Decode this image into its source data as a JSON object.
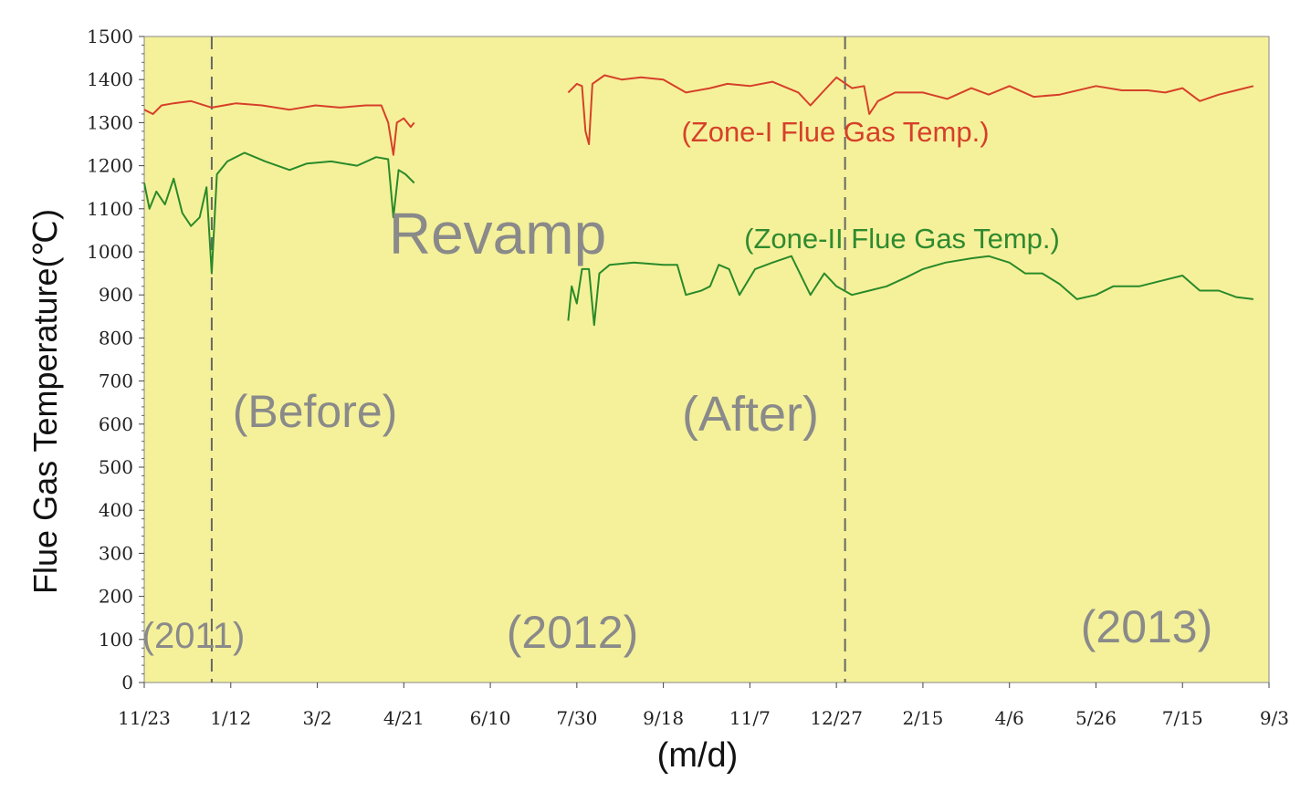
{
  "chart_data": {
    "type": "line",
    "title": "",
    "xlabel": "(m/d)",
    "ylabel": "Flue Gas Temperature(℃)",
    "ylim": [
      0,
      1500
    ],
    "yticks": [
      0,
      100,
      200,
      300,
      400,
      500,
      600,
      700,
      800,
      900,
      1000,
      1100,
      1200,
      1300,
      1400,
      1500
    ],
    "x_domain": [
      "2011-11-23",
      "2013-09-03"
    ],
    "xtick_labels": [
      "11/23",
      "1/12",
      "3/2",
      "4/21",
      "6/10",
      "7/30",
      "9/18",
      "11/7",
      "12/27",
      "2/15",
      "4/6",
      "5/26",
      "7/15",
      "9/3"
    ],
    "xtick_dates": [
      "2011-11-23",
      "2012-01-12",
      "2012-03-02",
      "2012-04-21",
      "2012-06-10",
      "2012-07-30",
      "2012-09-18",
      "2012-11-07",
      "2012-12-27",
      "2013-02-15",
      "2013-04-06",
      "2013-05-26",
      "2013-07-15",
      "2013-09-03"
    ],
    "grid": false,
    "background": "#f5f19a",
    "vlines": [
      "2012-01-01",
      "2013-01-01"
    ],
    "series": [
      {
        "name": "(Zone-I Flue Gas Temp.)",
        "color": "#d6402a",
        "segments": [
          [
            [
              "2011-11-23",
              1330
            ],
            [
              "2011-11-28",
              1320
            ],
            [
              "2011-12-03",
              1340
            ],
            [
              "2011-12-10",
              1345
            ],
            [
              "2011-12-20",
              1350
            ],
            [
              "2012-01-01",
              1335
            ],
            [
              "2012-01-15",
              1345
            ],
            [
              "2012-01-30",
              1340
            ],
            [
              "2012-02-15",
              1330
            ],
            [
              "2012-03-01",
              1340
            ],
            [
              "2012-03-15",
              1335
            ],
            [
              "2012-03-30",
              1340
            ],
            [
              "2012-04-08",
              1340
            ],
            [
              "2012-04-12",
              1300
            ],
            [
              "2012-04-15",
              1225
            ],
            [
              "2012-04-17",
              1300
            ],
            [
              "2012-04-21",
              1310
            ],
            [
              "2012-04-25",
              1290
            ],
            [
              "2012-04-27",
              1300
            ]
          ],
          [
            [
              "2012-07-25",
              1370
            ],
            [
              "2012-07-30",
              1390
            ],
            [
              "2012-08-02",
              1385
            ],
            [
              "2012-08-04",
              1280
            ],
            [
              "2012-08-06",
              1250
            ],
            [
              "2012-08-08",
              1390
            ],
            [
              "2012-08-15",
              1410
            ],
            [
              "2012-08-25",
              1400
            ],
            [
              "2012-09-05",
              1405
            ],
            [
              "2012-09-18",
              1400
            ],
            [
              "2012-10-01",
              1370
            ],
            [
              "2012-10-15",
              1380
            ],
            [
              "2012-10-25",
              1390
            ],
            [
              "2012-11-07",
              1385
            ],
            [
              "2012-11-20",
              1395
            ],
            [
              "2012-12-05",
              1370
            ],
            [
              "2012-12-12",
              1340
            ],
            [
              "2012-12-20",
              1375
            ],
            [
              "2012-12-27",
              1405
            ],
            [
              "2013-01-05",
              1380
            ],
            [
              "2013-01-12",
              1385
            ],
            [
              "2013-01-15",
              1320
            ],
            [
              "2013-01-20",
              1350
            ],
            [
              "2013-01-30",
              1370
            ],
            [
              "2013-02-15",
              1370
            ],
            [
              "2013-03-01",
              1355
            ],
            [
              "2013-03-15",
              1380
            ],
            [
              "2013-03-25",
              1365
            ],
            [
              "2013-04-06",
              1385
            ],
            [
              "2013-04-20",
              1360
            ],
            [
              "2013-05-05",
              1365
            ],
            [
              "2013-05-26",
              1385
            ],
            [
              "2013-06-10",
              1375
            ],
            [
              "2013-06-25",
              1375
            ],
            [
              "2013-07-05",
              1370
            ],
            [
              "2013-07-15",
              1380
            ],
            [
              "2013-07-25",
              1350
            ],
            [
              "2013-08-05",
              1365
            ],
            [
              "2013-08-15",
              1375
            ],
            [
              "2013-08-25",
              1385
            ]
          ]
        ]
      },
      {
        "name": "(Zone-II Flue Gas Temp.)",
        "color": "#2a8a2a",
        "segments": [
          [
            [
              "2011-11-23",
              1160
            ],
            [
              "2011-11-26",
              1100
            ],
            [
              "2011-11-30",
              1140
            ],
            [
              "2011-12-05",
              1110
            ],
            [
              "2011-12-10",
              1170
            ],
            [
              "2011-12-15",
              1090
            ],
            [
              "2011-12-20",
              1060
            ],
            [
              "2011-12-25",
              1080
            ],
            [
              "2011-12-29",
              1150
            ],
            [
              "2012-01-01",
              950
            ],
            [
              "2012-01-04",
              1180
            ],
            [
              "2012-01-10",
              1210
            ],
            [
              "2012-01-20",
              1230
            ],
            [
              "2012-02-01",
              1210
            ],
            [
              "2012-02-15",
              1190
            ],
            [
              "2012-02-25",
              1205
            ],
            [
              "2012-03-10",
              1210
            ],
            [
              "2012-03-25",
              1200
            ],
            [
              "2012-04-05",
              1220
            ],
            [
              "2012-04-12",
              1215
            ],
            [
              "2012-04-15",
              1080
            ],
            [
              "2012-04-18",
              1190
            ],
            [
              "2012-04-22",
              1180
            ],
            [
              "2012-04-27",
              1160
            ]
          ],
          [
            [
              "2012-07-25",
              840
            ],
            [
              "2012-07-27",
              920
            ],
            [
              "2012-07-30",
              880
            ],
            [
              "2012-08-02",
              960
            ],
            [
              "2012-08-06",
              960
            ],
            [
              "2012-08-09",
              830
            ],
            [
              "2012-08-12",
              950
            ],
            [
              "2012-08-18",
              970
            ],
            [
              "2012-09-01",
              975
            ],
            [
              "2012-09-18",
              970
            ],
            [
              "2012-09-26",
              970
            ],
            [
              "2012-10-01",
              900
            ],
            [
              "2012-10-10",
              910
            ],
            [
              "2012-10-15",
              920
            ],
            [
              "2012-10-20",
              970
            ],
            [
              "2012-10-26",
              960
            ],
            [
              "2012-11-01",
              900
            ],
            [
              "2012-11-10",
              960
            ],
            [
              "2012-11-20",
              975
            ],
            [
              "2012-12-01",
              990
            ],
            [
              "2012-12-12",
              900
            ],
            [
              "2012-12-20",
              950
            ],
            [
              "2012-12-27",
              920
            ],
            [
              "2013-01-05",
              900
            ],
            [
              "2013-01-15",
              910
            ],
            [
              "2013-01-25",
              920
            ],
            [
              "2013-02-05",
              940
            ],
            [
              "2013-02-15",
              960
            ],
            [
              "2013-02-28",
              975
            ],
            [
              "2013-03-15",
              985
            ],
            [
              "2013-03-25",
              990
            ],
            [
              "2013-04-06",
              975
            ],
            [
              "2013-04-15",
              950
            ],
            [
              "2013-04-25",
              950
            ],
            [
              "2013-05-05",
              925
            ],
            [
              "2013-05-15",
              890
            ],
            [
              "2013-05-26",
              900
            ],
            [
              "2013-06-05",
              920
            ],
            [
              "2013-06-20",
              920
            ],
            [
              "2013-07-05",
              935
            ],
            [
              "2013-07-15",
              945
            ],
            [
              "2013-07-25",
              910
            ],
            [
              "2013-08-05",
              910
            ],
            [
              "2013-08-15",
              895
            ],
            [
              "2013-08-25",
              890
            ]
          ]
        ]
      }
    ],
    "annotations": [
      {
        "text": "(Zone-I Flue Gas Temp.)",
        "kind": "red"
      },
      {
        "text": "(Zone-II Flue Gas Temp.)",
        "kind": "green"
      },
      {
        "text": "Revamp",
        "kind": "gray-large"
      },
      {
        "text": "(Before)",
        "kind": "gray"
      },
      {
        "text": "(After)",
        "kind": "gray"
      },
      {
        "text": "(2011)",
        "kind": "gray-small"
      },
      {
        "text": "(2012)",
        "kind": "gray"
      },
      {
        "text": "(2013)",
        "kind": "gray"
      }
    ]
  }
}
